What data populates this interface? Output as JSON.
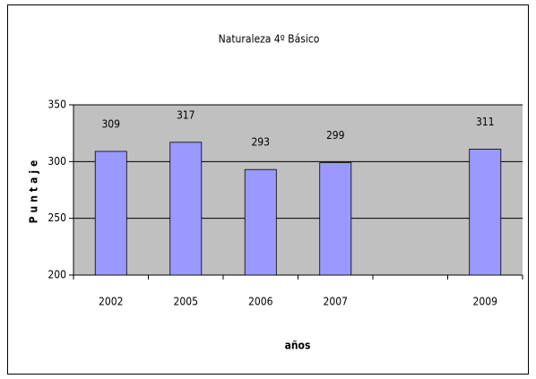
{
  "chart_data": {
    "type": "bar",
    "title": "Naturaleza 4º Básico",
    "categories": [
      "2002",
      "2005",
      "2006",
      "2007",
      null,
      "2009"
    ],
    "values": [
      309,
      317,
      293,
      299,
      null,
      311
    ],
    "color": "#9999ff",
    "plot_background": "#c0c0c0",
    "ylim": [
      200,
      350
    ],
    "yticks": [
      200,
      250,
      300,
      350
    ],
    "grid": true,
    "y_label": "Puntaje",
    "x_label": "años"
  }
}
